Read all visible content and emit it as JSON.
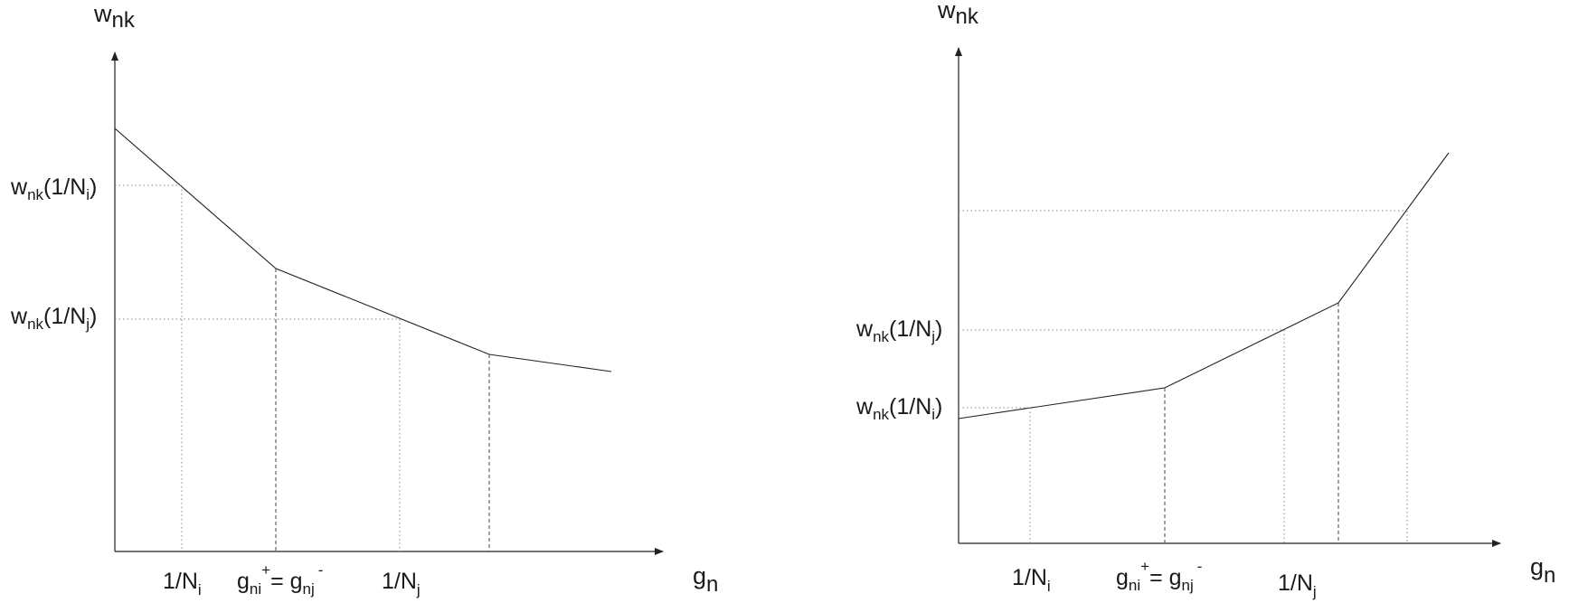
{
  "left_diagram": {
    "y_axis": {
      "base": "w",
      "sub": "nk"
    },
    "x_axis": {
      "base": "g",
      "sub": "n"
    },
    "y_labels": [
      {
        "pre": "w",
        "sub": "nk",
        "mid": "(1/N",
        "sub2": "i",
        "post": ")"
      },
      {
        "pre": "w",
        "sub": "nk",
        "mid": "(1/N",
        "sub2": "j",
        "post": ")"
      }
    ],
    "x_labels": {
      "inv_ni": {
        "base": "1/N",
        "sub": "i"
      },
      "inv_nj": {
        "base": "1/N",
        "sub": "j"
      },
      "g_eq": {
        "g1": "g",
        "g1_sub": "ni",
        "g1_sup": "+",
        "eq": "= g",
        "g2_sub": "nj",
        "g2_sup": "-"
      }
    }
  },
  "right_diagram": {
    "y_axis": {
      "base": "w",
      "sub": "nk"
    },
    "x_axis": {
      "base": "g",
      "sub": "n"
    },
    "y_labels": [
      {
        "pre": "w",
        "sub": "nk",
        "mid": "(1/N",
        "sub2": "j",
        "post": ")"
      },
      {
        "pre": "w",
        "sub": "nk",
        "mid": "(1/N",
        "sub2": "i",
        "post": ")"
      }
    ],
    "x_labels": {
      "inv_ni": {
        "base": "1/N",
        "sub": "i"
      },
      "inv_nj": {
        "base": "1/N",
        "sub": "j"
      },
      "g_eq": {
        "g1": "g",
        "g1_sub": "ni",
        "g1_sup": "+",
        "eq": "= g",
        "g2_sub": "nj",
        "g2_sup": "-"
      }
    }
  }
}
